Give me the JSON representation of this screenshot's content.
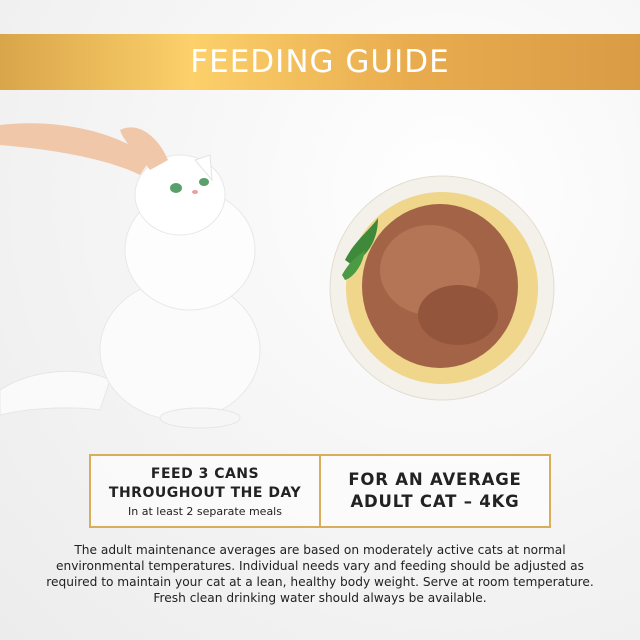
{
  "banner": {
    "title": "FEEDING GUIDE",
    "color": "#e8ab4e"
  },
  "images": {
    "left": "cat-being-petted",
    "right": "bowl-of-wet-cat-food"
  },
  "feeding": {
    "box1": {
      "line1": "FEED 3 CANS",
      "line2": "THROUGHOUT THE DAY",
      "subtext": "In at least 2 separate meals"
    },
    "box2": {
      "line1": "FOR AN AVERAGE",
      "line2": "ADULT CAT – 4KG"
    },
    "border_color": "#d9ae5a"
  },
  "note": "The adult maintenance averages are based on moderately active cats at normal environmental temperatures. Individual needs vary and feeding should be adjusted as required to maintain your cat at a lean, healthy body weight. Serve at room temperature. Fresh clean drinking water should always be available."
}
